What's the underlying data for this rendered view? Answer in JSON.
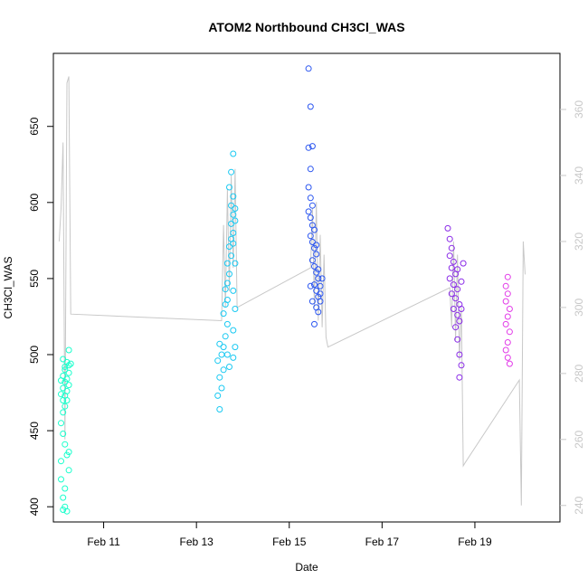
{
  "chart_data": {
    "type": "scatter",
    "title": "ATOM2 Northbound CH3Cl_WAS",
    "xlabel": "Date",
    "ylabel": "CH3Cl_WAS",
    "x_unit": "days",
    "xlim": [
      "2017-02-09 22:00",
      "2017-02-20 20:00"
    ],
    "ylim": [
      390,
      698
    ],
    "y2lim": [
      235,
      377
    ],
    "x_ticks": [
      {
        "date": "2017-02-11",
        "label": "Feb 11"
      },
      {
        "date": "2017-02-13",
        "label": "Feb 13"
      },
      {
        "date": "2017-02-15",
        "label": "Feb 15"
      },
      {
        "date": "2017-02-17",
        "label": "Feb 17"
      },
      {
        "date": "2017-02-19",
        "label": "Feb 19"
      }
    ],
    "y_ticks": [
      400,
      450,
      500,
      550,
      600,
      650
    ],
    "y2_ticks": [
      240,
      260,
      280,
      300,
      320,
      340,
      360
    ],
    "grid": false,
    "colors": {
      "flight1": "#19ffcc",
      "flight2": "#19c9f2",
      "flight3": "#2a55f0",
      "flight4": "#8a2ae8",
      "flight5": "#e23ce8",
      "secondary_line": "#c8c8c8"
    },
    "series": [
      {
        "color_key": "flight1",
        "points": [
          [
            "2017-02-10 03:00",
            398
          ],
          [
            "2017-02-10 04:00",
            400
          ],
          [
            "2017-02-10 05:00",
            397
          ],
          [
            "2017-02-10 02:00",
            418
          ],
          [
            "2017-02-10 03:00",
            406
          ],
          [
            "2017-02-10 04:00",
            412
          ],
          [
            "2017-02-10 02:00",
            430
          ],
          [
            "2017-02-10 05:00",
            434
          ],
          [
            "2017-02-10 06:00",
            424
          ],
          [
            "2017-02-10 04:00",
            441
          ],
          [
            "2017-02-10 06:00",
            436
          ],
          [
            "2017-02-10 03:00",
            448
          ],
          [
            "2017-02-10 02:00",
            455
          ],
          [
            "2017-02-10 03:00",
            462
          ],
          [
            "2017-02-10 04:00",
            466
          ],
          [
            "2017-02-10 05:00",
            470
          ],
          [
            "2017-02-10 02:00",
            474
          ],
          [
            "2017-02-10 03:00",
            478
          ],
          [
            "2017-02-10 04:00",
            482
          ],
          [
            "2017-02-10 05:00",
            476
          ],
          [
            "2017-02-10 06:00",
            480
          ],
          [
            "2017-02-10 03:00",
            486
          ],
          [
            "2017-02-10 04:00",
            490
          ],
          [
            "2017-02-10 02:00",
            483
          ],
          [
            "2017-02-10 05:00",
            484
          ],
          [
            "2017-02-10 06:00",
            488
          ],
          [
            "2017-02-10 03:00",
            470
          ],
          [
            "2017-02-10 04:00",
            473
          ],
          [
            "2017-02-10 06:00",
            493
          ],
          [
            "2017-02-10 05:00",
            495
          ],
          [
            "2017-02-10 03:00",
            497
          ],
          [
            "2017-02-10 06:00",
            503
          ],
          [
            "2017-02-10 07:00",
            494
          ],
          [
            "2017-02-10 04:00",
            492
          ]
        ]
      },
      {
        "color_key": "flight2",
        "points": [
          [
            "2017-02-13 12:00",
            464
          ],
          [
            "2017-02-13 11:00",
            473
          ],
          [
            "2017-02-13 13:00",
            478
          ],
          [
            "2017-02-13 12:00",
            485
          ],
          [
            "2017-02-13 14:00",
            490
          ],
          [
            "2017-02-13 11:00",
            496
          ],
          [
            "2017-02-13 13:00",
            500
          ],
          [
            "2017-02-13 14:00",
            505
          ],
          [
            "2017-02-13 12:00",
            507
          ],
          [
            "2017-02-13 15:00",
            512
          ],
          [
            "2017-02-13 16:00",
            520
          ],
          [
            "2017-02-13 14:00",
            527
          ],
          [
            "2017-02-13 15:00",
            533
          ],
          [
            "2017-02-13 16:00",
            536
          ],
          [
            "2017-02-13 15:00",
            543
          ],
          [
            "2017-02-13 16:00",
            547
          ],
          [
            "2017-02-13 17:00",
            553
          ],
          [
            "2017-02-13 16:00",
            560
          ],
          [
            "2017-02-13 18:00",
            565
          ],
          [
            "2017-02-13 17:00",
            571
          ],
          [
            "2017-02-13 18:00",
            576
          ],
          [
            "2017-02-13 19:00",
            580
          ],
          [
            "2017-02-13 18:00",
            586
          ],
          [
            "2017-02-13 19:00",
            592
          ],
          [
            "2017-02-13 18:00",
            598
          ],
          [
            "2017-02-13 19:00",
            604
          ],
          [
            "2017-02-13 17:00",
            610
          ],
          [
            "2017-02-13 18:00",
            620
          ],
          [
            "2017-02-13 19:00",
            632
          ],
          [
            "2017-02-13 20:00",
            596
          ],
          [
            "2017-02-13 20:00",
            588
          ],
          [
            "2017-02-13 19:00",
            573
          ],
          [
            "2017-02-13 20:00",
            560
          ],
          [
            "2017-02-13 19:00",
            542
          ],
          [
            "2017-02-13 20:00",
            530
          ],
          [
            "2017-02-13 19:00",
            516
          ],
          [
            "2017-02-13 20:00",
            505
          ],
          [
            "2017-02-13 19:00",
            498
          ],
          [
            "2017-02-13 17:00",
            492
          ],
          [
            "2017-02-13 16:00",
            500
          ]
        ]
      },
      {
        "color_key": "flight3",
        "points": [
          [
            "2017-02-15 10:00",
            688
          ],
          [
            "2017-02-15 11:00",
            663
          ],
          [
            "2017-02-15 10:00",
            636
          ],
          [
            "2017-02-15 12:00",
            637
          ],
          [
            "2017-02-15 11:00",
            622
          ],
          [
            "2017-02-15 10:00",
            610
          ],
          [
            "2017-02-15 11:00",
            603
          ],
          [
            "2017-02-15 12:00",
            598
          ],
          [
            "2017-02-15 10:00",
            594
          ],
          [
            "2017-02-15 11:00",
            590
          ],
          [
            "2017-02-15 12:00",
            585
          ],
          [
            "2017-02-15 13:00",
            582
          ],
          [
            "2017-02-15 11:00",
            578
          ],
          [
            "2017-02-15 12:00",
            574
          ],
          [
            "2017-02-15 13:00",
            570
          ],
          [
            "2017-02-15 14:00",
            566
          ],
          [
            "2017-02-15 12:00",
            562
          ],
          [
            "2017-02-15 13:00",
            558
          ],
          [
            "2017-02-15 14:00",
            554
          ],
          [
            "2017-02-15 15:00",
            550
          ],
          [
            "2017-02-15 13:00",
            546
          ],
          [
            "2017-02-15 14:00",
            542
          ],
          [
            "2017-02-15 15:00",
            538
          ],
          [
            "2017-02-15 16:00",
            535
          ],
          [
            "2017-02-15 14:00",
            531
          ],
          [
            "2017-02-15 15:00",
            528
          ],
          [
            "2017-02-15 16:00",
            545
          ],
          [
            "2017-02-15 17:00",
            550
          ],
          [
            "2017-02-15 16:00",
            540
          ],
          [
            "2017-02-15 15:00",
            556
          ],
          [
            "2017-02-15 13:00",
            520
          ],
          [
            "2017-02-15 12:00",
            535
          ],
          [
            "2017-02-15 11:00",
            545
          ],
          [
            "2017-02-15 14:00",
            572
          ]
        ]
      },
      {
        "color_key": "flight4",
        "points": [
          [
            "2017-02-18 10:00",
            583
          ],
          [
            "2017-02-18 11:00",
            576
          ],
          [
            "2017-02-18 12:00",
            570
          ],
          [
            "2017-02-18 11:00",
            565
          ],
          [
            "2017-02-18 13:00",
            561
          ],
          [
            "2017-02-18 12:00",
            557
          ],
          [
            "2017-02-18 14:00",
            553
          ],
          [
            "2017-02-18 11:00",
            550
          ],
          [
            "2017-02-18 13:00",
            546
          ],
          [
            "2017-02-18 15:00",
            543
          ],
          [
            "2017-02-18 12:00",
            540
          ],
          [
            "2017-02-18 14:00",
            537
          ],
          [
            "2017-02-18 16:00",
            533
          ],
          [
            "2017-02-18 13:00",
            530
          ],
          [
            "2017-02-18 15:00",
            526
          ],
          [
            "2017-02-18 16:00",
            522
          ],
          [
            "2017-02-18 14:00",
            518
          ],
          [
            "2017-02-18 15:00",
            510
          ],
          [
            "2017-02-18 16:00",
            500
          ],
          [
            "2017-02-18 17:00",
            493
          ],
          [
            "2017-02-18 16:00",
            485
          ],
          [
            "2017-02-18 17:00",
            530
          ],
          [
            "2017-02-18 18:00",
            560
          ],
          [
            "2017-02-18 17:00",
            548
          ],
          [
            "2017-02-18 15:00",
            556
          ]
        ]
      },
      {
        "color_key": "flight5",
        "points": [
          [
            "2017-02-19 17:00",
            551
          ],
          [
            "2017-02-19 16:00",
            545
          ],
          [
            "2017-02-19 17:00",
            540
          ],
          [
            "2017-02-19 16:00",
            535
          ],
          [
            "2017-02-19 18:00",
            530
          ],
          [
            "2017-02-19 17:00",
            525
          ],
          [
            "2017-02-19 16:00",
            520
          ],
          [
            "2017-02-19 18:00",
            515
          ],
          [
            "2017-02-19 17:00",
            508
          ],
          [
            "2017-02-19 16:00",
            503
          ],
          [
            "2017-02-19 17:00",
            498
          ],
          [
            "2017-02-19 18:00",
            494
          ]
        ]
      }
    ],
    "secondary_line": [
      [
        "2017-02-10 01:00",
        320
      ],
      [
        "2017-02-10 02:00",
        330
      ],
      [
        "2017-02-10 03:00",
        350
      ],
      [
        "2017-02-10 04:00",
        260
      ],
      [
        "2017-02-10 05:00",
        368
      ],
      [
        "2017-02-10 06:00",
        370
      ],
      [
        "2017-02-10 07:00",
        298
      ],
      [
        "2017-02-13 13:00",
        296
      ],
      [
        "2017-02-13 14:00",
        325
      ],
      [
        "2017-02-13 15:00",
        300
      ],
      [
        "2017-02-13 16:00",
        336
      ],
      [
        "2017-02-13 17:00",
        305
      ],
      [
        "2017-02-13 18:00",
        340
      ],
      [
        "2017-02-13 19:00",
        312
      ],
      [
        "2017-02-13 20:00",
        342
      ],
      [
        "2017-02-13 21:00",
        300
      ],
      [
        "2017-02-15 11:00",
        312
      ],
      [
        "2017-02-15 12:00",
        330
      ],
      [
        "2017-02-15 13:00",
        300
      ],
      [
        "2017-02-15 14:00",
        332
      ],
      [
        "2017-02-15 15:00",
        296
      ],
      [
        "2017-02-15 16:00",
        322
      ],
      [
        "2017-02-15 17:00",
        294
      ],
      [
        "2017-02-15 18:00",
        316
      ],
      [
        "2017-02-15 19:00",
        291
      ],
      [
        "2017-02-15 20:00",
        288
      ],
      [
        "2017-02-18 11:00",
        306
      ],
      [
        "2017-02-18 12:00",
        294
      ],
      [
        "2017-02-18 13:00",
        320
      ],
      [
        "2017-02-18 14:00",
        290
      ],
      [
        "2017-02-18 15:00",
        316
      ],
      [
        "2017-02-18 16:00",
        284
      ],
      [
        "2017-02-18 17:00",
        300
      ],
      [
        "2017-02-18 18:00",
        252
      ],
      [
        "2017-02-18 19:00",
        253
      ],
      [
        "2017-02-19 23:00",
        278
      ],
      [
        "2017-02-20 00:00",
        240
      ],
      [
        "2017-02-20 01:00",
        320
      ],
      [
        "2017-02-20 02:00",
        310
      ]
    ]
  }
}
